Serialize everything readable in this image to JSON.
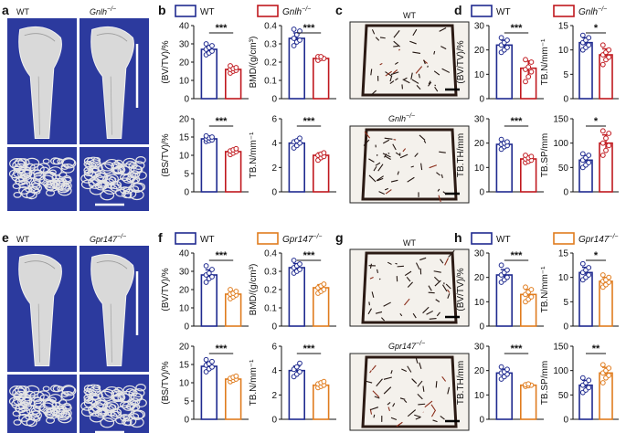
{
  "colors": {
    "wt": "#1f2a8f",
    "gnih": "#c0181e",
    "gpr147": "#e07c1e",
    "ct_bg": "#2c3a9e"
  },
  "panel_letters": [
    "a",
    "b",
    "c",
    "d",
    "e",
    "f",
    "g",
    "h"
  ],
  "micro_ct": {
    "top": {
      "wt_label": "WT",
      "ko_label_base": "Gnlh",
      "ko_label_sup": "−/−"
    },
    "bottom": {
      "wt_label": "WT",
      "ko_label_base": "Gpr147",
      "ko_label_sup": "−/−"
    }
  },
  "histology": {
    "top": {
      "wt_label": "WT",
      "ko_label_base": "Gnlh",
      "ko_label_sup": "−/−"
    },
    "bottom": {
      "wt_label": "WT",
      "ko_label_base": "Gpr147",
      "ko_label_sup": "−/−"
    }
  },
  "legends": {
    "top": {
      "wt": "WT",
      "ko_base": "Gnlh",
      "ko_sup": "−/−"
    },
    "bottom": {
      "wt": "WT",
      "ko_base": "Gpr147",
      "ko_sup": "−/−"
    }
  },
  "chart_data": [
    {
      "id": "b1",
      "type": "bar",
      "ylabel": "(BV/TV)/%",
      "ylim": [
        0,
        40
      ],
      "yticks": [
        0,
        10,
        20,
        30,
        40
      ],
      "categories": [
        "WT",
        "Gnlh−/−"
      ],
      "values": [
        27,
        16
      ],
      "sig": "***",
      "groups": "top",
      "points": [
        [
          24,
          25,
          26,
          27,
          28,
          29,
          30
        ],
        [
          14,
          15,
          15.5,
          16,
          16.5,
          17,
          18
        ]
      ]
    },
    {
      "id": "b2",
      "type": "bar",
      "ylabel": "BMD/(g/cm³)",
      "ylim": [
        0,
        0.4
      ],
      "yticks": [
        0,
        0.1,
        0.2,
        0.3,
        0.4
      ],
      "categories": [
        "WT",
        "Gnlh−/−"
      ],
      "values": [
        0.33,
        0.22
      ],
      "sig": "***",
      "groups": "top",
      "points": [
        [
          0.29,
          0.31,
          0.32,
          0.33,
          0.35,
          0.37,
          0.38
        ],
        [
          0.21,
          0.22,
          0.22,
          0.23,
          0.23
        ]
      ]
    },
    {
      "id": "b3",
      "type": "bar",
      "ylabel": "(BS/TV)/%",
      "ylim": [
        0,
        20
      ],
      "yticks": [
        0,
        5,
        10,
        15,
        20
      ],
      "categories": [
        "WT",
        "Gnlh−/−"
      ],
      "values": [
        14.5,
        11
      ],
      "sig": "***",
      "groups": "top",
      "points": [
        [
          13.8,
          14,
          14.2,
          14.5,
          14.8,
          15,
          15.3
        ],
        [
          10.2,
          10.6,
          11,
          11.2,
          11.5,
          11.8
        ]
      ]
    },
    {
      "id": "b4",
      "type": "bar",
      "ylabel": "TB.N/mm⁻¹",
      "ylim": [
        0,
        6
      ],
      "yticks": [
        0,
        2,
        4,
        6
      ],
      "categories": [
        "WT",
        "Gnlh−/−"
      ],
      "values": [
        4.0,
        3.0
      ],
      "sig": "***",
      "groups": "top",
      "points": [
        [
          3.6,
          3.8,
          4.0,
          4.1,
          4.2,
          4.4
        ],
        [
          2.6,
          2.8,
          2.9,
          3.0,
          3.1,
          3.2
        ]
      ]
    },
    {
      "id": "d1",
      "type": "bar",
      "ylabel": "(BV/TV)/%",
      "ylim": [
        0,
        30
      ],
      "yticks": [
        0,
        10,
        20,
        30
      ],
      "categories": [
        "WT",
        "Gnlh−/−"
      ],
      "values": [
        22,
        12.5
      ],
      "sig": "***",
      "groups": "top",
      "points": [
        [
          19,
          20,
          21,
          22,
          23,
          24,
          25
        ],
        [
          7,
          9,
          11,
          12,
          13,
          15,
          16
        ]
      ]
    },
    {
      "id": "d2",
      "type": "bar",
      "ylabel": "TB.N/mm⁻¹",
      "ylim": [
        0,
        15
      ],
      "yticks": [
        0,
        5,
        10,
        15
      ],
      "categories": [
        "WT",
        "Gnlh−/−"
      ],
      "values": [
        11.5,
        9
      ],
      "sig": "*",
      "groups": "top",
      "points": [
        [
          10,
          10.5,
          11,
          11.5,
          12,
          12.5,
          13
        ],
        [
          7,
          8,
          8.5,
          9,
          9.5,
          10,
          11
        ]
      ]
    },
    {
      "id": "d3",
      "type": "bar",
      "ylabel": "TB.TH/mm",
      "ylim": [
        0,
        30
      ],
      "yticks": [
        0,
        10,
        20,
        30
      ],
      "categories": [
        "WT",
        "Gnlh−/−"
      ],
      "values": [
        19.5,
        13.5
      ],
      "sig": "***",
      "groups": "top",
      "points": [
        [
          17.5,
          18.5,
          19,
          19.5,
          20,
          20.5,
          21.5
        ],
        [
          12,
          12.5,
          13,
          13.5,
          14,
          14.5,
          15
        ]
      ]
    },
    {
      "id": "d4",
      "type": "bar",
      "ylabel": "TB.SP/mm",
      "ylim": [
        0,
        150
      ],
      "yticks": [
        0,
        50,
        100,
        150
      ],
      "categories": [
        "WT",
        "Gnlh−/−"
      ],
      "values": [
        65,
        100
      ],
      "sig": "*",
      "groups": "top",
      "points": [
        [
          50,
          55,
          60,
          65,
          70,
          75,
          78
        ],
        [
          75,
          85,
          95,
          100,
          110,
          120,
          125
        ]
      ]
    },
    {
      "id": "f1",
      "type": "bar",
      "ylabel": "(BV/TV)/%",
      "ylim": [
        0,
        40
      ],
      "yticks": [
        0,
        10,
        20,
        30,
        40
      ],
      "categories": [
        "WT",
        "Gpr147−/−"
      ],
      "values": [
        28,
        17.5
      ],
      "sig": "***",
      "groups": "bottom",
      "points": [
        [
          24,
          26,
          27,
          28,
          29,
          31,
          33
        ],
        [
          15,
          16,
          17,
          17.5,
          18,
          19,
          20
        ]
      ]
    },
    {
      "id": "f2",
      "type": "bar",
      "ylabel": "BMD/(g/cm³)",
      "ylim": [
        0,
        0.4
      ],
      "yticks": [
        0,
        0.1,
        0.2,
        0.3,
        0.4
      ],
      "categories": [
        "WT",
        "Gpr147−/−"
      ],
      "values": [
        0.32,
        0.21
      ],
      "sig": "***",
      "groups": "bottom",
      "points": [
        [
          0.29,
          0.3,
          0.31,
          0.32,
          0.33,
          0.34,
          0.36
        ],
        [
          0.18,
          0.19,
          0.2,
          0.21,
          0.22,
          0.23
        ]
      ]
    },
    {
      "id": "f3",
      "type": "bar",
      "ylabel": "(BS/TV)/%",
      "ylim": [
        0,
        20
      ],
      "yticks": [
        0,
        5,
        10,
        15,
        20
      ],
      "categories": [
        "WT",
        "Gpr147−/−"
      ],
      "values": [
        14.5,
        11
      ],
      "sig": "***",
      "groups": "bottom",
      "points": [
        [
          13,
          13.8,
          14.3,
          14.8,
          15.2,
          15.8,
          16.3
        ],
        [
          10.3,
          10.7,
          11,
          11.2,
          11.5,
          11.8
        ]
      ]
    },
    {
      "id": "f4",
      "type": "bar",
      "ylabel": "TB.N/mm⁻¹",
      "ylim": [
        0,
        6
      ],
      "yticks": [
        0,
        2,
        4,
        6
      ],
      "categories": [
        "WT",
        "Gpr147−/−"
      ],
      "values": [
        4.0,
        2.8
      ],
      "sig": "***",
      "groups": "bottom",
      "points": [
        [
          3.5,
          3.7,
          3.9,
          4.1,
          4.3,
          4.6
        ],
        [
          2.6,
          2.7,
          2.8,
          2.9,
          3.0,
          3.1
        ]
      ]
    },
    {
      "id": "h1",
      "type": "bar",
      "ylabel": "(BV/TV)/%",
      "ylim": [
        0,
        30
      ],
      "yticks": [
        0,
        10,
        20,
        30
      ],
      "categories": [
        "WT",
        "Gpr147−/−"
      ],
      "values": [
        21,
        13
      ],
      "sig": "***",
      "groups": "bottom",
      "points": [
        [
          18,
          19,
          20,
          21,
          22,
          23,
          25
        ],
        [
          10,
          11,
          12,
          13,
          14,
          15,
          16
        ]
      ]
    },
    {
      "id": "h2",
      "type": "bar",
      "ylabel": "TB.N/mm⁻¹",
      "ylim": [
        0,
        15
      ],
      "yticks": [
        0,
        5,
        10,
        15
      ],
      "categories": [
        "WT",
        "Gpr147−/−"
      ],
      "values": [
        11,
        9.2
      ],
      "sig": "*",
      "groups": "bottom",
      "points": [
        [
          9.5,
          10,
          10.5,
          11,
          11.5,
          12,
          12.8
        ],
        [
          8,
          8.5,
          9,
          9.2,
          9.5,
          10,
          10.5
        ]
      ]
    },
    {
      "id": "h3",
      "type": "bar",
      "ylabel": "TB.TH/mm",
      "ylim": [
        0,
        30
      ],
      "yticks": [
        0,
        10,
        20,
        30
      ],
      "categories": [
        "WT",
        "Gpr147−/−"
      ],
      "values": [
        19,
        14
      ],
      "sig": "***",
      "groups": "bottom",
      "points": [
        [
          16.5,
          17.5,
          18.5,
          19,
          19.5,
          20.5,
          21.5
        ],
        [
          13.5,
          13.8,
          14,
          14.2,
          14.5
        ]
      ]
    },
    {
      "id": "h4",
      "type": "bar",
      "ylabel": "TB.SP/mm",
      "ylim": [
        0,
        150
      ],
      "yticks": [
        0,
        50,
        100,
        150
      ],
      "categories": [
        "WT",
        "Gpr147−/−"
      ],
      "values": [
        70,
        95
      ],
      "sig": "**",
      "groups": "bottom",
      "points": [
        [
          55,
          60,
          65,
          70,
          75,
          80,
          85
        ],
        [
          75,
          85,
          90,
          95,
          100,
          105,
          112
        ]
      ]
    }
  ]
}
